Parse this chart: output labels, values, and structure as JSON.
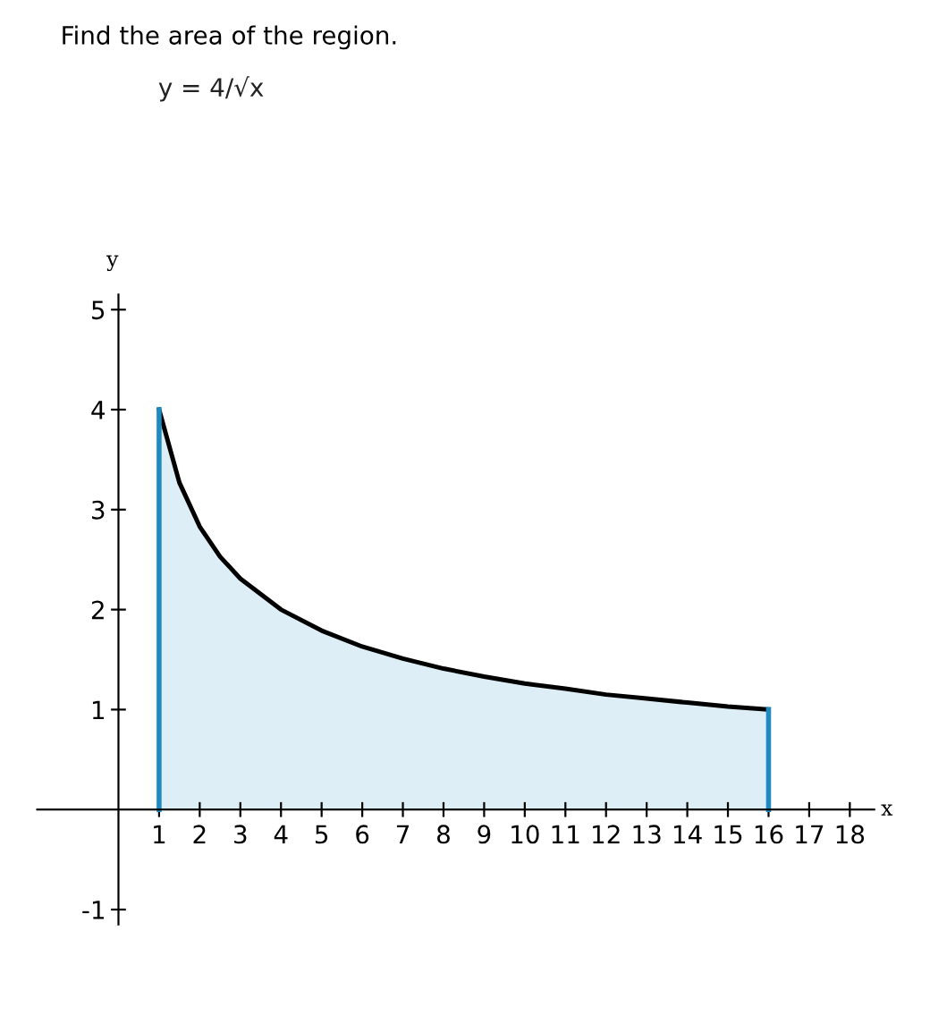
{
  "chart_data": {
    "type": "area",
    "title": "Find the area of the region.",
    "annotations": [
      "y = 4/√x"
    ],
    "xlabel": "x",
    "ylabel": "y",
    "x": [
      1,
      1.5,
      2,
      2.5,
      3,
      4,
      5,
      6,
      7,
      8,
      9,
      10,
      11,
      12,
      13,
      14,
      15,
      16
    ],
    "series": [
      {
        "color": "#000000",
        "values": [
          4,
          3.27,
          2.83,
          2.53,
          2.31,
          2,
          1.79,
          1.63,
          1.51,
          1.41,
          1.33,
          1.26,
          1.21,
          1.15,
          1.11,
          1.07,
          1.03,
          1
        ]
      }
    ],
    "xlim": [
      -2,
      18.6
    ],
    "ylim": [
      -1.15,
      5.15
    ],
    "xticks": [
      1,
      2,
      3,
      4,
      5,
      6,
      7,
      8,
      9,
      10,
      11,
      12,
      13,
      14,
      15,
      16,
      17,
      18
    ],
    "yticks": [
      -1,
      1,
      2,
      3,
      4,
      5
    ],
    "ref_lines": [
      {
        "axis": "x",
        "value": 1,
        "color": "#1f8ac0"
      },
      {
        "axis": "x",
        "value": 16,
        "color": "#1f8ac0"
      }
    ],
    "grid": false,
    "legend": false
  }
}
